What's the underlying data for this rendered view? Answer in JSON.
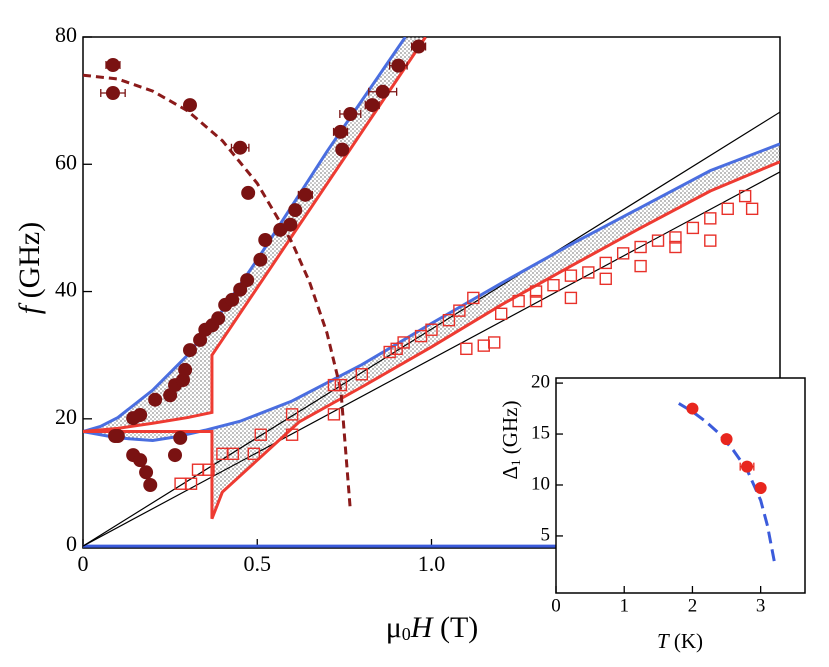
{
  "chart_data": [
    {
      "type": "scatter",
      "xlabel": {
        "symbol": "μ",
        "subscript": "0",
        "variable": "H",
        "unit": "(T)"
      },
      "ylabel": {
        "symbol": "f",
        "unit": "(GHz)"
      },
      "xlim": [
        0,
        2.0
      ],
      "ylim": [
        -0.3,
        80
      ],
      "xticks": [
        0,
        0.5,
        {
          "value": 1,
          "label": "1.0"
        }
      ],
      "yticks": [
        0,
        20,
        40,
        60,
        80
      ],
      "texture": "#8e8e8e",
      "series": [
        {
          "type": "line",
          "color": "#3b5bdb",
          "x": [
            0,
            2.0
          ],
          "values": [
            0,
            0
          ]
        },
        {
          "type": "line",
          "color": "#000000",
          "x": [
            0,
            2.0
          ],
          "values": [
            0,
            68.2
          ]
        },
        {
          "type": "line",
          "color": "#000000",
          "x": [
            0,
            2.0
          ],
          "values": [
            0,
            58.8
          ]
        },
        {
          "type": "line",
          "color": "#4a6ee0",
          "x": [
            0,
            0.05,
            0.1,
            0.2,
            0.3,
            0.4,
            0.5,
            0.6,
            0.7,
            0.8,
            0.925
          ],
          "values": [
            18,
            18.8,
            20.2,
            24.5,
            30,
            37,
            45,
            53.5,
            62,
            70,
            80
          ]
        },
        {
          "type": "line",
          "color": "#ee3b32",
          "x": [
            0,
            0.1,
            0.2,
            0.3,
            0.37,
            0.37,
            0.983
          ],
          "values": [
            18,
            18.5,
            19.3,
            20.2,
            21,
            30,
            80
          ]
        },
        {
          "type": "line",
          "color": "#4a6ee0",
          "x": [
            0,
            0.1,
            0.2,
            0.27,
            0.35,
            0.45,
            0.6,
            0.8,
            1.0,
            1.2,
            1.4,
            1.6,
            1.8,
            2.0
          ],
          "values": [
            18,
            17,
            16.6,
            17.2,
            18.2,
            19.6,
            22.8,
            28.5,
            35,
            41.3,
            47.4,
            53.2,
            59,
            63.2
          ]
        },
        {
          "type": "line",
          "color": "#ee3b32",
          "x": [
            0,
            0.37,
            0.37,
            0.4,
            0.48,
            0.62,
            0.8,
            1.0,
            1.2,
            1.4,
            1.6,
            1.8,
            2.0
          ],
          "values": [
            18,
            18,
            4.3,
            8.5,
            12.5,
            19.5,
            25,
            31.3,
            37.9,
            44,
            50,
            55.8,
            60.4
          ]
        },
        {
          "type": "line",
          "style": "dashed",
          "color": "#8b1a1a",
          "x": [
            0,
            0.1,
            0.2,
            0.3,
            0.4,
            0.5,
            0.6,
            0.65,
            0.7,
            0.74,
            0.767
          ],
          "values": [
            74,
            73.4,
            71.5,
            68.4,
            63.7,
            57,
            47.7,
            41.5,
            33.5,
            24.5,
            5.7
          ]
        },
        {
          "type": "scatter",
          "marker": "open-square",
          "color": "#e8312a",
          "x": [
            0.28,
            0.31,
            0.33,
            0.36,
            0.4,
            0.43,
            0.49,
            0.51,
            0.6,
            0.6,
            0.72,
            0.72,
            0.74,
            0.8,
            0.88,
            0.9,
            0.92,
            0.97,
            1.0,
            1.05,
            1.08,
            1.12,
            1.1,
            1.15,
            1.18,
            1.2,
            1.25,
            1.3,
            1.35,
            1.4,
            1.45,
            1.5,
            1.55,
            1.6,
            1.65,
            1.7,
            1.75,
            1.8,
            1.85,
            1.9,
            1.3,
            1.4,
            1.5,
            1.6,
            1.7,
            1.8,
            1.92
          ],
          "values": [
            9.8,
            9.8,
            12,
            12,
            14.5,
            14.5,
            14.5,
            17.5,
            17.5,
            20.7,
            20.7,
            25.3,
            25.3,
            27,
            30.5,
            31,
            32,
            33,
            34,
            35.5,
            37,
            39,
            31,
            31.5,
            32,
            36.5,
            38.5,
            40,
            41,
            42.5,
            43,
            44.5,
            46,
            47,
            48,
            48.5,
            50,
            51.5,
            53,
            55,
            38.5,
            39,
            42,
            44,
            47,
            48,
            53
          ]
        },
        {
          "type": "scatter",
          "marker": "filled-circle",
          "color": "#7a1212",
          "x": [
            0.092,
            0.1,
            0.144,
            0.164,
            0.181,
            0.193,
            0.144,
            0.164,
            0.207,
            0.25,
            0.264,
            0.287,
            0.264,
            0.279,
            0.293,
            0.307,
            0.336,
            0.351,
            0.371,
            0.388,
            0.408,
            0.428,
            0.451,
            0.471,
            0.509,
            0.523,
            0.566,
            0.595,
            0.609,
            0.638,
            0.474,
            0.451,
            0.744,
            0.739,
            0.767,
            0.83,
            0.86,
            0.905,
            0.963,
            0.086,
            0.086,
            0.307
          ],
          "values": [
            17.3,
            17.3,
            14.3,
            13.5,
            11.6,
            9.6,
            20.1,
            20.6,
            23,
            23.7,
            25.3,
            26.1,
            14.3,
            17,
            27.7,
            30.8,
            32.4,
            34,
            34.7,
            35.8,
            37.9,
            38.7,
            40.3,
            41.8,
            45,
            48.1,
            49.7,
            50.5,
            52.8,
            55.2,
            55.5,
            62.6,
            62.3,
            65.1,
            67.9,
            69.3,
            71.4,
            75.5,
            78.5,
            75.6,
            71.2,
            69.3
          ],
          "xerr": [
            null,
            null,
            null,
            null,
            null,
            null,
            null,
            null,
            null,
            null,
            null,
            null,
            null,
            null,
            null,
            null,
            null,
            null,
            null,
            null,
            null,
            null,
            null,
            null,
            null,
            null,
            null,
            null,
            null,
            0.02,
            0.015,
            0.025,
            0.015,
            0.02,
            0.03,
            0.02,
            0.04,
            0.025,
            0.02,
            0.02,
            0.035,
            0.015
          ]
        }
      ]
    },
    {
      "type": "scatter",
      "xlabel": {
        "variable": "T",
        "unit": "(K)"
      },
      "ylabel": {
        "symbol": "Δ",
        "subscript": "1",
        "unit": "(GHz)"
      },
      "xlim": [
        0,
        3.65
      ],
      "ylim": [
        -0.6,
        20.5
      ],
      "xticks": [
        0,
        1,
        2,
        3
      ],
      "yticks": [
        5,
        10,
        15,
        20
      ],
      "series": [
        {
          "type": "line",
          "style": "dashed",
          "color": "#3b5bdb",
          "x": [
            1.8,
            2.0,
            2.2,
            2.4,
            2.6,
            2.8,
            3.0,
            3.1,
            3.2
          ],
          "values": [
            18,
            17.2,
            16.2,
            15,
            13.4,
            11.5,
            8.5,
            6,
            2.5
          ]
        },
        {
          "type": "scatter",
          "marker": "filled-circle",
          "color": "#e8261e",
          "x": [
            2.0,
            2.5,
            2.8,
            3.0
          ],
          "values": [
            17.5,
            14.5,
            11.8,
            9.7
          ],
          "xerr": [
            0.05,
            0.05,
            0.1,
            0.05
          ]
        }
      ]
    }
  ]
}
